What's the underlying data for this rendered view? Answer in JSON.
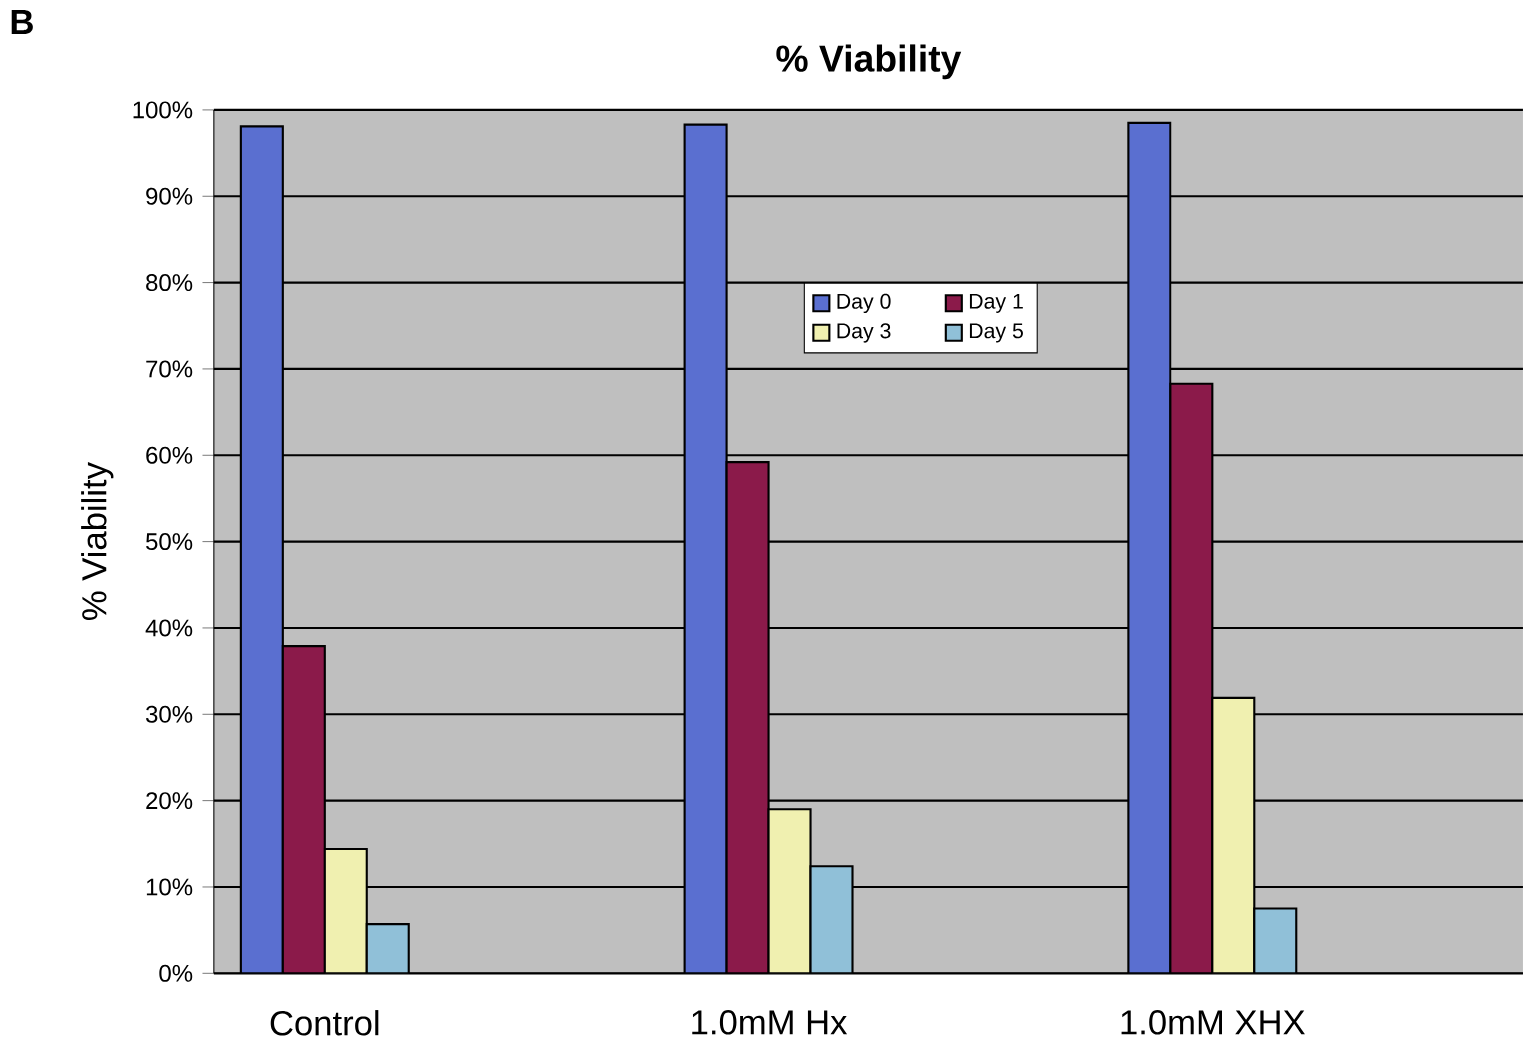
{
  "chart_data": {
    "type": "bar",
    "title": "% Viability",
    "ylabel": "% Viability",
    "annotations": [
      "B"
    ],
    "categories": [
      "Control",
      "1.0mM Hx",
      "1.0mM XHX"
    ],
    "series": [
      {
        "name": "Day 0",
        "color": "#5a6fd0",
        "values": [
          98.1,
          98.3,
          98.5
        ]
      },
      {
        "name": "Day 1",
        "color": "#8b1a4a",
        "values": [
          37.9,
          59.2,
          68.3
        ]
      },
      {
        "name": "Day 3",
        "color": "#f0f0b0",
        "values": [
          14.4,
          19.0,
          31.9
        ]
      },
      {
        "name": "Day 5",
        "color": "#90c0d8",
        "values": [
          5.7,
          12.4,
          7.5
        ]
      }
    ],
    "ylim": [
      0,
      100
    ],
    "yticks": [
      {
        "value": 0,
        "label": "0%"
      },
      {
        "value": 10,
        "label": "10%"
      },
      {
        "value": 20,
        "label": "20%"
      },
      {
        "value": 30,
        "label": "30%"
      },
      {
        "value": 40,
        "label": "40%"
      },
      {
        "value": 50,
        "label": "50%"
      },
      {
        "value": 60,
        "label": "60%"
      },
      {
        "value": 70,
        "label": "70%"
      },
      {
        "value": 80,
        "label": "80%"
      },
      {
        "value": 90,
        "label": "90%"
      },
      {
        "value": 100,
        "label": "100%"
      }
    ],
    "grid": "y",
    "legend": "top"
  }
}
